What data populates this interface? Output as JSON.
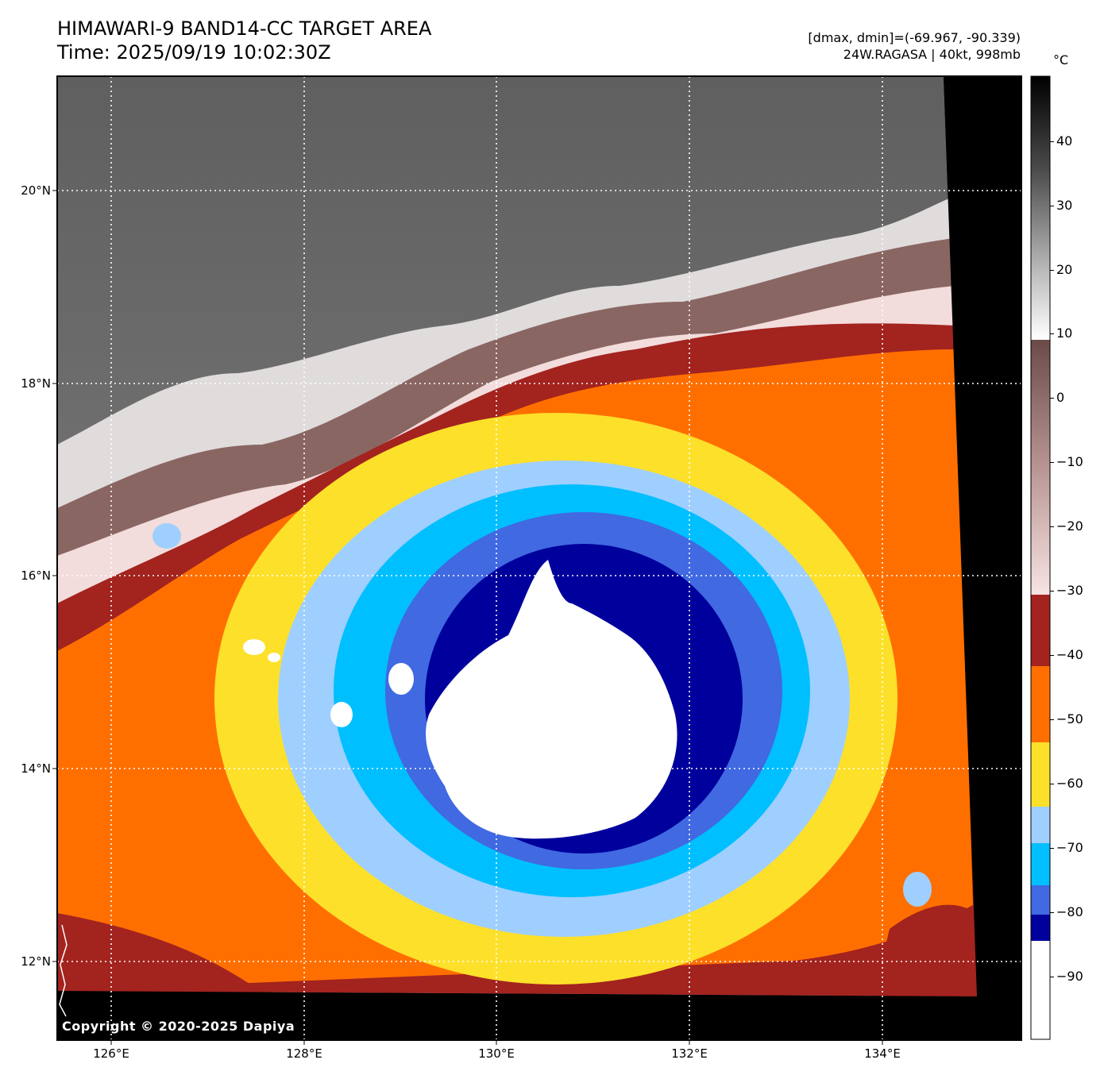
{
  "header": {
    "title_line1": "HIMAWARI-9 BAND14-CC TARGET AREA",
    "title_line2": "Time: 2025/09/19 10:02:30Z",
    "range": "[dmax, dmin]=(-69.967, -90.339)",
    "storm": "24W.RAGASA | 40kt, 998mb"
  },
  "map": {
    "copyright": "Copyright © 2020-2025 Dapiya",
    "lon_labels": [
      "126°E",
      "128°E",
      "130°E",
      "132°E",
      "134°E"
    ],
    "lat_labels": [
      "20°N",
      "18°N",
      "16°N",
      "14°N",
      "12°N"
    ]
  },
  "colorbar": {
    "unit": "°C",
    "ticks": [
      "40",
      "30",
      "20",
      "10",
      "0",
      "−10",
      "−20",
      "−30",
      "−40",
      "−50",
      "−60",
      "−70",
      "−80",
      "−90"
    ],
    "colors": {
      "warm_top": "#000000",
      "grey_white": "#ffffff",
      "brown": "#6b4a48",
      "pink": "#f5dede",
      "dark_red": "#a3231f",
      "orange": "#ff6f00",
      "yellow": "#fde02a",
      "light_blue": "#9fcfff",
      "cyan": "#00bfff",
      "royal_blue": "#4169e1",
      "navy": "#00009c",
      "white": "#ffffff"
    }
  }
}
